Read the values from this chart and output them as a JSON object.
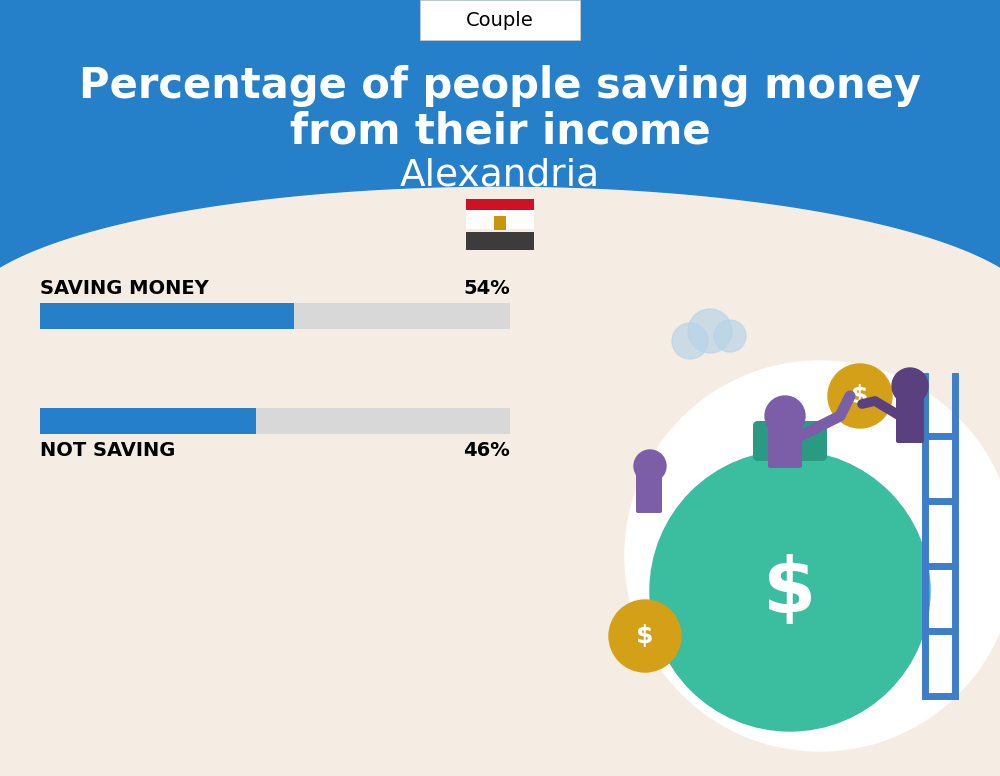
{
  "title_line1": "Percentage of people saving money",
  "title_line2": "from their income",
  "subtitle": "Alexandria",
  "category_label": "Couple",
  "bg_color": "#f5ede3",
  "blue_color": "#2680C9",
  "bar_bg_color": "#d8d8d8",
  "saving_label": "SAVING MONEY",
  "saving_pct": 54,
  "saving_pct_label": "54%",
  "not_saving_label": "NOT SAVING",
  "not_saving_pct": 46,
  "not_saving_pct_label": "46%",
  "fig_width": 10.0,
  "fig_height": 7.76
}
